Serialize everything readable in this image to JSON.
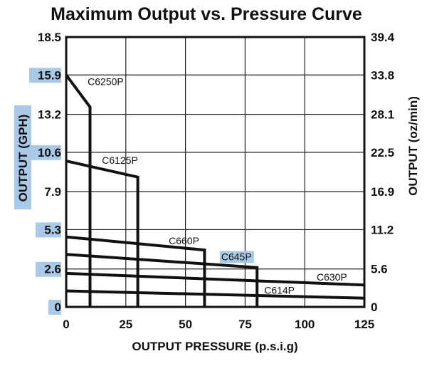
{
  "chart_data": {
    "type": "line",
    "title": "Maximum Output vs. Pressure Curve",
    "xlabel": "OUTPUT PRESSURE  (p.s.i.g)",
    "ylabel_left": "OUTPUT  (GPH)",
    "ylabel_right": "OUTPUT  (oz/min)",
    "xlim": [
      0,
      125
    ],
    "ylim_left": [
      0,
      18.5
    ],
    "ylim_right": [
      0,
      39.4
    ],
    "x_ticks": [
      "0",
      "25",
      "50",
      "75",
      "100",
      "125"
    ],
    "y_ticks_left": [
      "0",
      "2.6",
      "5.3",
      "7.9",
      "10.6",
      "13.2",
      "15.9",
      "18.5"
    ],
    "y_ticks_right": [
      "0",
      "5.6",
      "11.2",
      "16.9",
      "22.5",
      "28.1",
      "33.8",
      "39.4"
    ],
    "highlighted_left_ticks": [
      "0",
      "2.6",
      "5.3",
      "10.6",
      "15.9"
    ],
    "grid": true,
    "series": [
      {
        "name": "C6250P",
        "x": [
          0,
          10,
          10
        ],
        "y": [
          15.9,
          13.7,
          0
        ]
      },
      {
        "name": "C6125P",
        "x": [
          0,
          30,
          30
        ],
        "y": [
          10.0,
          8.9,
          0
        ]
      },
      {
        "name": "C660P",
        "x": [
          0,
          58,
          58
        ],
        "y": [
          4.8,
          3.9,
          0
        ]
      },
      {
        "name": "C645P",
        "x": [
          0,
          80,
          80
        ],
        "y": [
          3.6,
          2.7,
          0
        ]
      },
      {
        "name": "C630P",
        "x": [
          0,
          125
        ],
        "y": [
          2.3,
          1.5
        ]
      },
      {
        "name": "C614P",
        "x": [
          0,
          125
        ],
        "y": [
          1.1,
          0.6
        ]
      }
    ],
    "label_positions_data": [
      {
        "name": "C6250P",
        "x": 9,
        "y": 15.2
      },
      {
        "name": "C6125P",
        "x": 15,
        "y": 9.8
      },
      {
        "name": "C660P",
        "x": 43,
        "y": 4.3
      },
      {
        "name": "C645P",
        "x": 65,
        "y": 3.2
      },
      {
        "name": "C630P",
        "x": 105,
        "y": 1.8
      },
      {
        "name": "C614P",
        "x": 83,
        "y": 0.9
      }
    ]
  }
}
